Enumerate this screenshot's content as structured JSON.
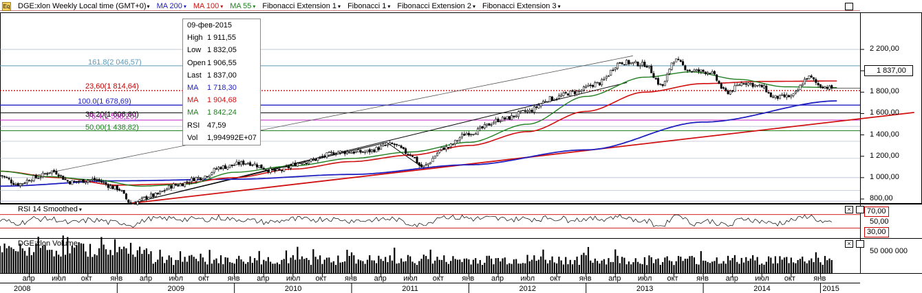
{
  "header": {
    "symbol": "DGE:xlon Weekly Local time (GMT+0)",
    "indicators": [
      {
        "label": "MA 200",
        "color": "#2020c0"
      },
      {
        "label": "MA 100",
        "color": "#d01010"
      },
      {
        "label": "MA 55",
        "color": "#208020"
      },
      {
        "label": "Fibonacci Extension 1",
        "color": "#000000"
      },
      {
        "label": "Fibonacci 1",
        "color": "#000000"
      },
      {
        "label": "Fibonacci Extension 2",
        "color": "#000000"
      },
      {
        "label": "Fibonacci Extension 3",
        "color": "#000000"
      }
    ]
  },
  "tooltip": {
    "date": "09-фев-2015",
    "rows": [
      {
        "key": "High",
        "value": "1 911,55",
        "color": "#000000"
      },
      {
        "key": "Low",
        "value": "1 832,05",
        "color": "#000000"
      },
      {
        "key": "Open",
        "value": "1 906,55",
        "color": "#000000"
      },
      {
        "key": "Last",
        "value": "1 837,00",
        "color": "#000000"
      },
      {
        "key": "MA",
        "value": "1 718,30",
        "color": "#2020c0"
      },
      {
        "key": "MA",
        "value": "1 904,68",
        "color": "#d01010"
      },
      {
        "key": "MA",
        "value": "1 842,24",
        "color": "#208020"
      },
      {
        "key": "RSI",
        "value": "47,59",
        "color": "#000000"
      },
      {
        "key": "Vol",
        "value": "1,994992E+07",
        "color": "#000000"
      }
    ]
  },
  "fib_levels": [
    {
      "label": "161.8(2 046,57)",
      "price": 2046.57,
      "color": "#5a9ab8"
    },
    {
      "label": "23,60(1 814,64)",
      "price": 1814.64,
      "color": "#c00000"
    },
    {
      "label": "100.0(1 678,69)",
      "price": 1678.69,
      "color": "#2020c0"
    },
    {
      "label": "38,20(1 606,80)",
      "price": 1606.8,
      "color": "#000000"
    },
    {
      "label": "76.4(1 538,20)",
      "price": 1538.2,
      "color": "#c020c0"
    },
    {
      "label": "50,00(1 438,82)",
      "price": 1438.82,
      "color": "#208020"
    }
  ],
  "rsi_pane": {
    "title": "RSI 14 Smoothed",
    "levels": [
      "70,00",
      "50,00",
      "30,00"
    ]
  },
  "volume_pane": {
    "title": "DGE:xlon Volume",
    "axis_label": "50 000 000"
  },
  "last_price_label": "1 837,00",
  "chart_data": {
    "type": "candlestick",
    "title": "DGE:xlon Weekly Local time (GMT+0)",
    "y_ticks": [
      "2 200,00",
      "2 000,00",
      "1 800,00",
      "1 600,00",
      "1 400,00",
      "1 200,00",
      "1 000,00",
      "800,00"
    ],
    "ylim": [
      700,
      2300
    ],
    "x_months": [
      "апр",
      "июл",
      "окт",
      "янв",
      "апр",
      "июл",
      "окт",
      "янв",
      "апр",
      "июл",
      "окт",
      "янв",
      "апр",
      "июл",
      "окт",
      "янв",
      "апр",
      "июл",
      "окт",
      "янв",
      "апр",
      "июл",
      "окт",
      "янв",
      "апр",
      "июл",
      "окт",
      "янв"
    ],
    "x_years": [
      "2008",
      "2009",
      "2010",
      "2011",
      "2012",
      "2013",
      "2014",
      "2015"
    ],
    "price_anchors": [
      {
        "x": 2008.0,
        "y": 1020
      },
      {
        "x": 2008.15,
        "y": 940
      },
      {
        "x": 2008.3,
        "y": 1000
      },
      {
        "x": 2008.45,
        "y": 1060
      },
      {
        "x": 2008.6,
        "y": 960
      },
      {
        "x": 2008.8,
        "y": 980
      },
      {
        "x": 2009.0,
        "y": 900
      },
      {
        "x": 2009.12,
        "y": 760
      },
      {
        "x": 2009.3,
        "y": 830
      },
      {
        "x": 2009.5,
        "y": 930
      },
      {
        "x": 2009.7,
        "y": 1000
      },
      {
        "x": 2009.9,
        "y": 1100
      },
      {
        "x": 2010.1,
        "y": 1140
      },
      {
        "x": 2010.35,
        "y": 1060
      },
      {
        "x": 2010.6,
        "y": 1150
      },
      {
        "x": 2010.9,
        "y": 1240
      },
      {
        "x": 2011.1,
        "y": 1240
      },
      {
        "x": 2011.35,
        "y": 1310
      },
      {
        "x": 2011.5,
        "y": 1220
      },
      {
        "x": 2011.6,
        "y": 1100
      },
      {
        "x": 2011.8,
        "y": 1280
      },
      {
        "x": 2012.0,
        "y": 1420
      },
      {
        "x": 2012.3,
        "y": 1550
      },
      {
        "x": 2012.5,
        "y": 1620
      },
      {
        "x": 2012.7,
        "y": 1740
      },
      {
        "x": 2012.9,
        "y": 1800
      },
      {
        "x": 2013.1,
        "y": 1880
      },
      {
        "x": 2013.3,
        "y": 2080
      },
      {
        "x": 2013.5,
        "y": 2060
      },
      {
        "x": 2013.65,
        "y": 1860
      },
      {
        "x": 2013.75,
        "y": 2100
      },
      {
        "x": 2013.9,
        "y": 2000
      },
      {
        "x": 2014.05,
        "y": 1990
      },
      {
        "x": 2014.2,
        "y": 1800
      },
      {
        "x": 2014.35,
        "y": 1890
      },
      {
        "x": 2014.5,
        "y": 1850
      },
      {
        "x": 2014.6,
        "y": 1750
      },
      {
        "x": 2014.75,
        "y": 1760
      },
      {
        "x": 2014.9,
        "y": 1940
      },
      {
        "x": 2015.0,
        "y": 1860
      },
      {
        "x": 2015.1,
        "y": 1837
      }
    ],
    "ma200": [
      {
        "x": 2008.0,
        "y": 920
      },
      {
        "x": 2009.0,
        "y": 970
      },
      {
        "x": 2010.0,
        "y": 985
      },
      {
        "x": 2011.0,
        "y": 1030
      },
      {
        "x": 2012.0,
        "y": 1120
      },
      {
        "x": 2013.0,
        "y": 1260
      },
      {
        "x": 2014.0,
        "y": 1520
      },
      {
        "x": 2015.15,
        "y": 1718.3
      }
    ],
    "ma100": [
      {
        "x": 2008.0,
        "y": 1060
      },
      {
        "x": 2008.5,
        "y": 1000
      },
      {
        "x": 2009.0,
        "y": 930
      },
      {
        "x": 2009.5,
        "y": 940
      },
      {
        "x": 2010.0,
        "y": 1000
      },
      {
        "x": 2010.5,
        "y": 1080
      },
      {
        "x": 2011.0,
        "y": 1150
      },
      {
        "x": 2011.5,
        "y": 1210
      },
      {
        "x": 2012.0,
        "y": 1300
      },
      {
        "x": 2012.5,
        "y": 1430
      },
      {
        "x": 2013.0,
        "y": 1620
      },
      {
        "x": 2013.5,
        "y": 1800
      },
      {
        "x": 2014.0,
        "y": 1880
      },
      {
        "x": 2014.5,
        "y": 1900
      },
      {
        "x": 2015.15,
        "y": 1904.7
      }
    ],
    "ma55": [
      {
        "x": 2008.0,
        "y": 1060
      },
      {
        "x": 2008.4,
        "y": 1010
      },
      {
        "x": 2008.8,
        "y": 980
      },
      {
        "x": 2009.2,
        "y": 920
      },
      {
        "x": 2009.6,
        "y": 940
      },
      {
        "x": 2010.0,
        "y": 1050
      },
      {
        "x": 2010.5,
        "y": 1110
      },
      {
        "x": 2011.0,
        "y": 1180
      },
      {
        "x": 2011.5,
        "y": 1240
      },
      {
        "x": 2012.0,
        "y": 1330
      },
      {
        "x": 2012.5,
        "y": 1500
      },
      {
        "x": 2013.0,
        "y": 1760
      },
      {
        "x": 2013.5,
        "y": 1940
      },
      {
        "x": 2013.9,
        "y": 1990
      },
      {
        "x": 2014.3,
        "y": 1920
      },
      {
        "x": 2014.7,
        "y": 1850
      },
      {
        "x": 2015.15,
        "y": 1842.2
      }
    ],
    "trendline_long_support": [
      {
        "x": 2009.12,
        "y": 760
      },
      {
        "x": 2015.8,
        "y": 1610
      }
    ],
    "channel_upper": [
      {
        "x": 2008.3,
        "y": 1020
      },
      {
        "x": 2013.4,
        "y": 2140
      }
    ],
    "channel_lower": [
      {
        "x": 2009.12,
        "y": 760
      },
      {
        "x": 2013.35,
        "y": 1890
      }
    ],
    "extension_lines": [
      [
        {
          "x": 2009.12,
          "y": 760
        },
        {
          "x": 2011.3,
          "y": 1330
        },
        {
          "x": 2011.6,
          "y": 1100
        }
      ]
    ],
    "rsi_range": [
      0,
      100
    ],
    "volume_range": [
      0,
      60000000
    ]
  }
}
